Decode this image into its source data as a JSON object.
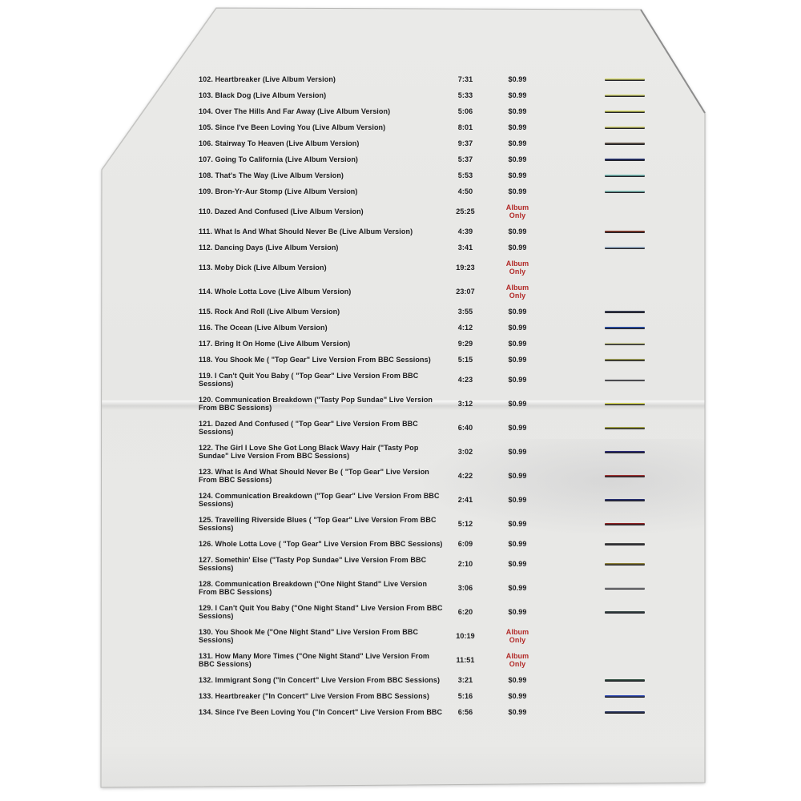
{
  "page": {
    "background_color": "#ffffff",
    "paper_color": "#e8e8e6",
    "text_color": "#1b1b1d",
    "album_only_color": "#b22a28"
  },
  "album_only_label": "Album Only",
  "price_default": "$0.99",
  "tracks": [
    {
      "num": "102.",
      "title": "Heartbreaker (Live Album Version)",
      "time": "7:31",
      "price": "$0.99",
      "album_only": false,
      "line_color": "#d2d565"
    },
    {
      "num": "103.",
      "title": "Black Dog (Live Album Version)",
      "time": "5:33",
      "price": "$0.99",
      "album_only": false,
      "line_color": "#d4d672"
    },
    {
      "num": "104.",
      "title": "Over The Hills And Far Away (Live Album Version)",
      "time": "5:06",
      "price": "$0.99",
      "album_only": false,
      "line_color": "#dade62"
    },
    {
      "num": "105.",
      "title": "Since I've Been Loving You (Live Album Version)",
      "time": "8:01",
      "price": "$0.99",
      "album_only": false,
      "line_color": "#d0ce6a"
    },
    {
      "num": "106.",
      "title": "Stairway To Heaven (Live Album Version)",
      "time": "9:37",
      "price": "$0.99",
      "album_only": false,
      "line_color": "#6b5d4e"
    },
    {
      "num": "107.",
      "title": "Going To California (Live Album Version)",
      "time": "5:37",
      "price": "$0.99",
      "album_only": false,
      "line_color": "#1f2d6e"
    },
    {
      "num": "108.",
      "title": "That's The Way (Live Album Version)",
      "time": "5:53",
      "price": "$0.99",
      "album_only": false,
      "line_color": "#79c4bc"
    },
    {
      "num": "109.",
      "title": "Bron-Yr-Aur Stomp (Live Album Version)",
      "time": "4:50",
      "price": "$0.99",
      "album_only": false,
      "line_color": "#8fd2c9"
    },
    {
      "num": "110.",
      "title": "Dazed And Confused (Live Album Version)",
      "time": "25:25",
      "price": "Album Only",
      "album_only": true,
      "line_color": null
    },
    {
      "num": "111.",
      "title": "What Is And What Should Never Be (Live Album Version)",
      "time": "4:39",
      "price": "$0.99",
      "album_only": false,
      "line_color": "#8a3a28"
    },
    {
      "num": "112.",
      "title": "Dancing Days (Live Album Version)",
      "time": "3:41",
      "price": "$0.99",
      "album_only": false,
      "line_color": "#a9c0d8"
    },
    {
      "num": "113.",
      "title": "Moby Dick (Live Album Version)",
      "time": "19:23",
      "price": "Album Only",
      "album_only": true,
      "line_color": null
    },
    {
      "num": "114.",
      "title": "Whole Lotta Love (Live Album Version)",
      "time": "23:07",
      "price": "Album Only",
      "album_only": true,
      "line_color": null
    },
    {
      "num": "115.",
      "title": "Rock And Roll (Live Album Version)",
      "time": "3:55",
      "price": "$0.99",
      "album_only": false,
      "line_color": "#3a3f55"
    },
    {
      "num": "116.",
      "title": "The Ocean (Live Album Version)",
      "time": "4:12",
      "price": "$0.99",
      "album_only": false,
      "line_color": "#2a52b0"
    },
    {
      "num": "117.",
      "title": "Bring It On Home (Live Album Version)",
      "time": "9:29",
      "price": "$0.99",
      "album_only": false,
      "line_color": "#cfcf9a"
    },
    {
      "num": "118.",
      "title": "You Shook Me ( \"Top Gear\" Live Version From BBC Sessions)",
      "time": "5:15",
      "price": "$0.99",
      "album_only": false,
      "line_color": "#9a9a50"
    },
    {
      "num": "119.",
      "title": "I Can't Quit You Baby ( \"Top Gear\" Live Version From BBC Sessions)",
      "time": "4:23",
      "price": "$0.99",
      "album_only": false,
      "line_color": "#cccccc"
    },
    {
      "num": "120.",
      "title": "Communication Breakdown (\"Tasty Pop Sundae\" Live Version From BBC Sessions)",
      "time": "3:12",
      "price": "$0.99",
      "album_only": false,
      "line_color": "#dede5e"
    },
    {
      "num": "121.",
      "title": "Dazed And Confused ( \"Top Gear\" Live Version From BBC Sessions)",
      "time": "6:40",
      "price": "$0.99",
      "album_only": false,
      "line_color": "#a5a545"
    },
    {
      "num": "122.",
      "title": "The Girl I Love She Got Long Black Wavy Hair (\"Tasty Pop Sundae\" Live Version From BBC Sessions)",
      "time": "3:02",
      "price": "$0.99",
      "album_only": false,
      "line_color": "#2b2b78"
    },
    {
      "num": "123.",
      "title": "What Is And What Should Never Be ( \"Top Gear\" Live Version From BBC Sessions)",
      "time": "4:22",
      "price": "$0.99",
      "album_only": false,
      "line_color": "#9e3030"
    },
    {
      "num": "124.",
      "title": "Communication Breakdown (\"Top Gear\" Live Version From BBC Sessions)",
      "time": "2:41",
      "price": "$0.99",
      "album_only": false,
      "line_color": "#232c6e"
    },
    {
      "num": "125.",
      "title": "Travelling Riverside Blues ( \"Top Gear\" Live Version From BBC Sessions)",
      "time": "5:12",
      "price": "$0.99",
      "album_only": false,
      "line_color": "#8f2222"
    },
    {
      "num": "126.",
      "title": "Whole Lotta Love ( \"Top Gear\" Live Version From BBC Sessions)",
      "time": "6:09",
      "price": "$0.99",
      "album_only": false,
      "line_color": "#4a4a4a"
    },
    {
      "num": "127.",
      "title": "Somethin' Else (\"Tasty Pop Sundae\" Live Version From BBC Sessions)",
      "time": "2:10",
      "price": "$0.99",
      "album_only": false,
      "line_color": "#8a7c32"
    },
    {
      "num": "128.",
      "title": "Communication Breakdown (\"One Night Stand\" Live Version From BBC Sessions)",
      "time": "3:06",
      "price": "$0.99",
      "album_only": false,
      "line_color": "#c8c8c8"
    },
    {
      "num": "129.",
      "title": "I Can't Quit You Baby (\"One Night Stand\" Live Version From BBC Sessions)",
      "time": "6:20",
      "price": "$0.99",
      "album_only": false,
      "line_color": "#3c4c4c"
    },
    {
      "num": "130.",
      "title": "You Shook Me (\"One Night Stand\" Live Version From BBC Sessions)",
      "time": "10:19",
      "price": "Album Only",
      "album_only": true,
      "line_color": null
    },
    {
      "num": "131.",
      "title": "How Many More Times (\"One Night Stand\" Live Version From BBC Sessions)",
      "time": "11:51",
      "price": "Album Only",
      "album_only": true,
      "line_color": null
    },
    {
      "num": "132.",
      "title": "Immigrant Song (\"In Concert\" Live Version From BBC Sessions)",
      "time": "3:21",
      "price": "$0.99",
      "album_only": false,
      "line_color": "#2c4a3c"
    },
    {
      "num": "133.",
      "title": "Heartbreaker (\"In Concert\" Live Version From BBC Sessions)",
      "time": "5:16",
      "price": "$0.99",
      "album_only": false,
      "line_color": "#2a46b4"
    },
    {
      "num": "134.",
      "title": "Since I've Been Loving You (\"In Concert\" Live Version From BBC",
      "time": "6:56",
      "price": "$0.99",
      "album_only": false,
      "line_color": "#22305e"
    }
  ]
}
